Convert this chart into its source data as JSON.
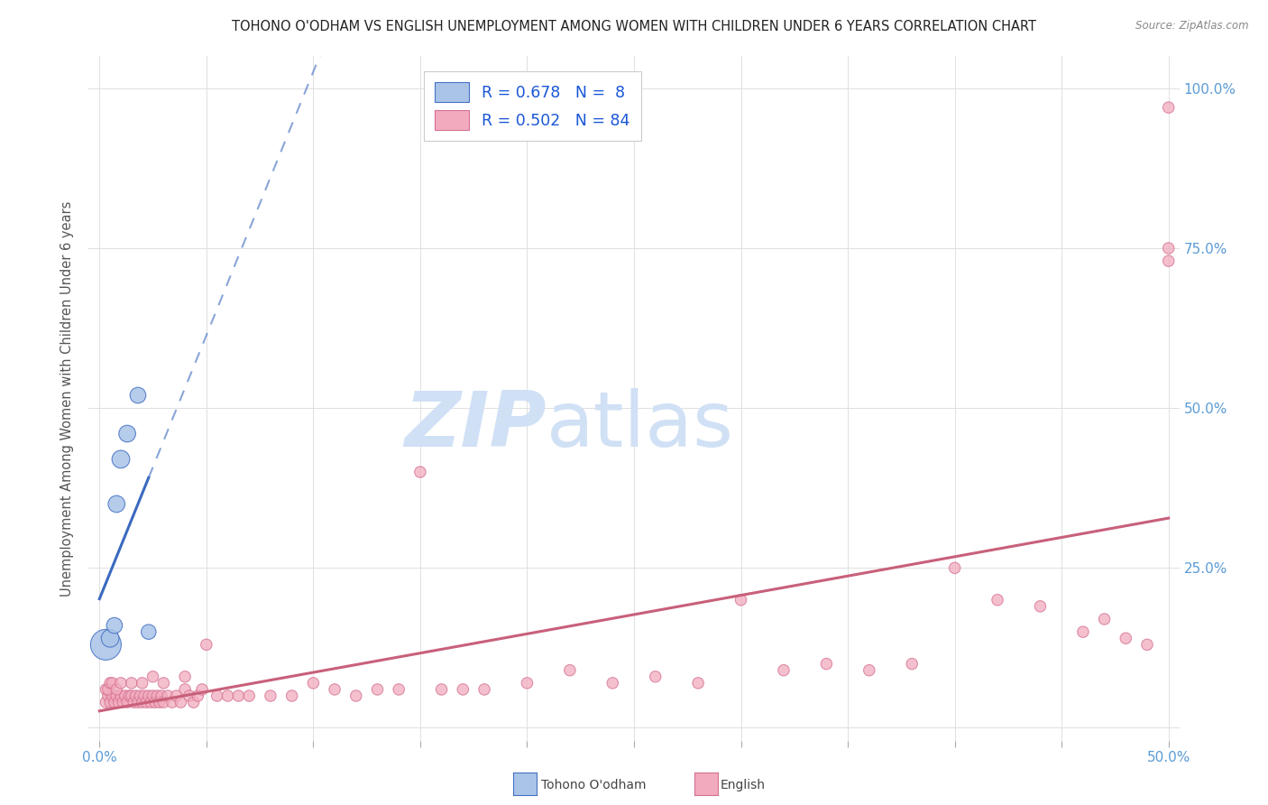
{
  "title": "TOHONO O'ODHAM VS ENGLISH UNEMPLOYMENT AMONG WOMEN WITH CHILDREN UNDER 6 YEARS CORRELATION CHART",
  "source": "Source: ZipAtlas.com",
  "ylabel": "Unemployment Among Women with Children Under 6 years",
  "xlim": [
    -0.005,
    0.505
  ],
  "ylim": [
    -0.02,
    1.05
  ],
  "xticks": [
    0.0,
    0.05,
    0.1,
    0.15,
    0.2,
    0.25,
    0.3,
    0.35,
    0.4,
    0.45,
    0.5
  ],
  "xticklabels": [
    "0.0%",
    "",
    "",
    "",
    "",
    "",
    "",
    "",
    "",
    "",
    "50.0%"
  ],
  "yticks": [
    0.0,
    0.25,
    0.5,
    0.75,
    1.0
  ],
  "yticklabels_right": [
    "",
    "25.0%",
    "50.0%",
    "75.0%",
    "100.0%"
  ],
  "legend_blue_label": "R = 0.678   N =  8",
  "legend_pink_label": "R = 0.502   N = 84",
  "blue_fill": "#aac4e8",
  "pink_fill": "#f2abbe",
  "blue_edge": "#4472c4",
  "pink_edge": "#d47090",
  "blue_line": "#3a6abf",
  "pink_line": "#c8607a",
  "watermark_zip": "ZIP",
  "watermark_atlas": "atlas",
  "watermark_color": "#d0e0f5",
  "background_color": "#ffffff",
  "grid_color": "#e0e0e0",
  "title_color": "#222222",
  "tick_label_color": "#5b9bd5",
  "ylabel_color": "#555555",
  "tohono_x": [
    0.003,
    0.005,
    0.007,
    0.008,
    0.01,
    0.013,
    0.018,
    0.023
  ],
  "tohono_y": [
    0.13,
    0.14,
    0.16,
    0.35,
    0.42,
    0.46,
    0.52,
    0.15
  ],
  "tohono_sizes": [
    600,
    200,
    160,
    180,
    200,
    180,
    160,
    140
  ],
  "english_x": [
    0.003,
    0.004,
    0.005,
    0.006,
    0.007,
    0.008,
    0.009,
    0.01,
    0.011,
    0.012,
    0.013,
    0.014,
    0.015,
    0.016,
    0.017,
    0.018,
    0.019,
    0.02,
    0.021,
    0.022,
    0.023,
    0.024,
    0.025,
    0.026,
    0.027,
    0.028,
    0.029,
    0.03,
    0.032,
    0.034,
    0.036,
    0.038,
    0.04,
    0.042,
    0.044,
    0.046,
    0.048,
    0.05,
    0.055,
    0.06,
    0.065,
    0.07,
    0.08,
    0.09,
    0.1,
    0.11,
    0.12,
    0.13,
    0.14,
    0.15,
    0.16,
    0.17,
    0.18,
    0.2,
    0.22,
    0.24,
    0.26,
    0.28,
    0.3,
    0.32,
    0.34,
    0.36,
    0.38,
    0.4,
    0.42,
    0.44,
    0.46,
    0.47,
    0.48,
    0.49,
    0.5,
    0.5,
    0.5,
    0.003,
    0.004,
    0.005,
    0.006,
    0.008,
    0.01,
    0.015,
    0.02,
    0.025,
    0.03,
    0.04
  ],
  "english_y": [
    0.04,
    0.05,
    0.04,
    0.05,
    0.04,
    0.05,
    0.04,
    0.05,
    0.04,
    0.05,
    0.04,
    0.05,
    0.05,
    0.04,
    0.05,
    0.04,
    0.05,
    0.04,
    0.05,
    0.04,
    0.05,
    0.04,
    0.05,
    0.04,
    0.05,
    0.04,
    0.05,
    0.04,
    0.05,
    0.04,
    0.05,
    0.04,
    0.06,
    0.05,
    0.04,
    0.05,
    0.06,
    0.13,
    0.05,
    0.05,
    0.05,
    0.05,
    0.05,
    0.05,
    0.07,
    0.06,
    0.05,
    0.06,
    0.06,
    0.4,
    0.06,
    0.06,
    0.06,
    0.07,
    0.09,
    0.07,
    0.08,
    0.07,
    0.2,
    0.09,
    0.1,
    0.09,
    0.1,
    0.25,
    0.2,
    0.19,
    0.15,
    0.17,
    0.14,
    0.13,
    0.75,
    0.73,
    0.97,
    0.06,
    0.06,
    0.07,
    0.07,
    0.06,
    0.07,
    0.07,
    0.07,
    0.08,
    0.07,
    0.08
  ],
  "english_sizes": [
    80,
    80,
    80,
    80,
    80,
    80,
    80,
    80,
    80,
    80,
    80,
    80,
    80,
    80,
    80,
    80,
    80,
    80,
    80,
    80,
    80,
    80,
    80,
    80,
    80,
    80,
    80,
    80,
    80,
    80,
    80,
    80,
    80,
    80,
    80,
    80,
    80,
    80,
    80,
    80,
    80,
    80,
    80,
    80,
    80,
    80,
    80,
    80,
    80,
    80,
    80,
    80,
    80,
    80,
    80,
    80,
    80,
    80,
    80,
    80,
    80,
    80,
    80,
    80,
    80,
    80,
    80,
    80,
    80,
    80,
    80,
    80,
    80,
    80,
    80,
    80,
    80,
    80,
    80,
    80,
    80,
    80,
    80,
    80
  ]
}
